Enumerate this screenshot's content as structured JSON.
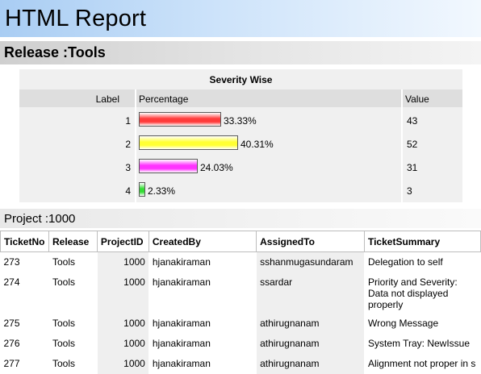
{
  "report": {
    "title": "HTML Report"
  },
  "release": {
    "title": "Release :Tools"
  },
  "severity": {
    "heading": "Severity Wise",
    "columns": {
      "label": "Label",
      "percentage": "Percentage",
      "value": "Value"
    }
  },
  "chart_data": {
    "type": "bar",
    "title": "Severity Wise",
    "categories": [
      "1",
      "2",
      "3",
      "4"
    ],
    "values": [
      43,
      52,
      31,
      3
    ],
    "percent_labels": [
      "33.33%",
      "40.31%",
      "24.03%",
      "2.33%"
    ],
    "percentages": [
      33.33,
      40.31,
      24.03,
      2.33
    ],
    "colors": [
      "#ff3b3b",
      "#ffff33",
      "#ff33ff",
      "#33dd33"
    ],
    "value_labels": [
      "43",
      "52",
      "31",
      "3"
    ]
  },
  "project": {
    "title": "Project :1000"
  },
  "table": {
    "columns": [
      "TicketNo",
      "Release",
      "ProjectID",
      "CreatedBy",
      "AssignedTo",
      "TicketSummary"
    ],
    "rows": [
      [
        "273",
        "Tools",
        "1000",
        "hjanakiraman",
        "sshanmugasundaram",
        "Delegation to self"
      ],
      [
        "274",
        "Tools",
        "1000",
        "hjanakiraman",
        "ssardar",
        "Priority and Severity: Data not displayed properly"
      ],
      [
        "275",
        "Tools",
        "1000",
        "hjanakiraman",
        "athirugnanam",
        "Wrong Message"
      ],
      [
        "276",
        "Tools",
        "1000",
        "hjanakiraman",
        "athirugnanam",
        "System Tray: NewIssue"
      ],
      [
        "277",
        "Tools",
        "1000",
        "hjanakiraman",
        "athirugnanam",
        "Alignment not proper in s"
      ]
    ]
  }
}
